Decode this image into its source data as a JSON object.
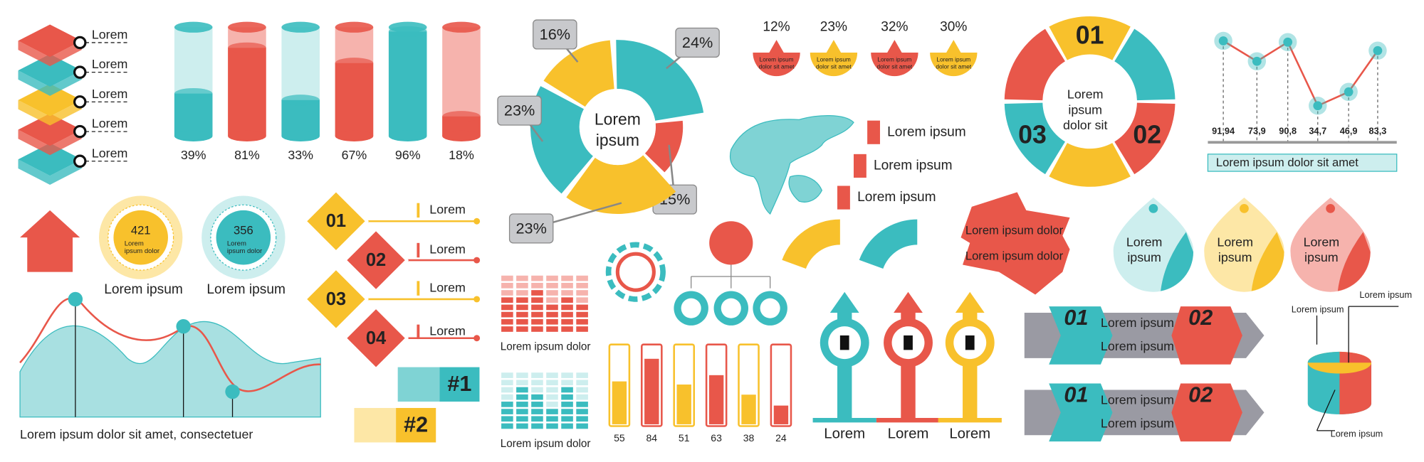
{
  "layers": {
    "labels": [
      "Lorem",
      "Lorem",
      "Lorem",
      "Lorem",
      "Lorem"
    ]
  },
  "cylinders": {
    "values": [
      39,
      81,
      33,
      67,
      96,
      18
    ],
    "value_labels": [
      "39%",
      "81%",
      "33%",
      "67%",
      "96%",
      "18%"
    ]
  },
  "donut": {
    "center": [
      "Lorem",
      "ipsum"
    ],
    "values": [
      16,
      24,
      15,
      23,
      23
    ],
    "value_labels": [
      "16%",
      "24%",
      "15%",
      "23%",
      "23%"
    ]
  },
  "drops": {
    "values": [
      12,
      23,
      32,
      30
    ],
    "value_labels": [
      "12%",
      "23%",
      "32%",
      "30%"
    ],
    "texts": [
      [
        "Lorem ipsum",
        "dolor sit amet"
      ],
      [
        "Lorem ipsum",
        "dolor sit amet"
      ],
      [
        "Lorem ipsum",
        "dolor sit amet"
      ],
      [
        "Lorem ipsum",
        "dolor sit amet"
      ]
    ]
  },
  "map_legend": [
    "Lorem ipsum",
    "Lorem ipsum",
    "Lorem ipsum"
  ],
  "cycle": {
    "numbers": [
      "01",
      "02",
      "03"
    ],
    "center": [
      "Lorem",
      "ipsum",
      "dolor sit"
    ]
  },
  "line": {
    "values": [
      91.94,
      73.9,
      90.8,
      34.7,
      46.9,
      83.3
    ],
    "value_labels": [
      "91,94",
      "73,9",
      "90,8",
      "34,7",
      "46,9",
      "83,3"
    ],
    "caption": "Lorem ipsum dolor sit amet"
  },
  "badges": [
    {
      "value": 421,
      "text": [
        "Lorem",
        "ipsum dolor"
      ],
      "caption": "Lorem ipsum"
    },
    {
      "value": 356,
      "text": [
        "Lorem",
        "ipsum dolor"
      ],
      "caption": "Lorem ipsum"
    }
  ],
  "steps": {
    "numbers": [
      "01",
      "02",
      "03",
      "04"
    ],
    "labels": [
      "Lorem",
      "Lorem",
      "Lorem",
      "Lorem"
    ]
  },
  "wave": {
    "caption": "Lorem ipsum dolor sit amet, consectetuer"
  },
  "ranks": [
    "#1",
    "#2"
  ],
  "grids": {
    "captions": [
      "Lorem ipsum dolor",
      "Lorem ipsum dolor"
    ],
    "red_levels": [
      5,
      5,
      6,
      4,
      5,
      4
    ],
    "teal_levels": [
      4,
      6,
      5,
      3,
      6,
      4
    ]
  },
  "tubes": {
    "values": [
      55,
      84,
      51,
      63,
      38,
      24
    ]
  },
  "ribbon": [
    "Lorem ipsum dolor",
    "Lorem ipsum dolor"
  ],
  "teardrops": [
    [
      "Lorem",
      "ipsum"
    ],
    [
      "Lorem",
      "ipsum"
    ],
    [
      "Lorem",
      "ipsum"
    ]
  ],
  "arrows": [
    "Lorem",
    "Lorem",
    "Lorem"
  ],
  "banners": [
    {
      "numbers": [
        "01",
        "02"
      ],
      "rows": [
        "Lorem ipsum",
        "Lorem ipsum"
      ]
    },
    {
      "numbers": [
        "01",
        "02"
      ],
      "rows": [
        "Lorem ipsum",
        "Lorem ipsum"
      ]
    }
  ],
  "pie3d": [
    "Lorem ipsum",
    "Lorem ipsum",
    "Lorem ipsum"
  ]
}
